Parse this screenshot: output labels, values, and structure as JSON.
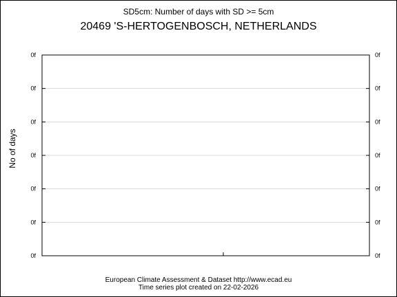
{
  "chart_data": {
    "type": "line",
    "subtitle": "SD5cm: Number of days with SD >= 5cm",
    "title": "20469 'S-HERTOGENBOSCH, NETHERLANDS",
    "xlabel": "",
    "ylabel": "No of days",
    "y_tick_labels": [
      "0f",
      "0f",
      "0f",
      "0f",
      "0f",
      "0f",
      "0f"
    ],
    "x_tick_labels": [],
    "grid": "horizontal",
    "legend": "none",
    "series": [],
    "footer": {
      "line1": "European Climate Assessment & Dataset  http://www.ecad.eu",
      "line2": "Time series plot created on 22-02-2026"
    }
  }
}
